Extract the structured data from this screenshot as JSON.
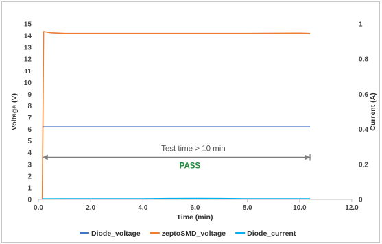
{
  "chart_data": {
    "type": "line",
    "xlabel": "Time (min)",
    "ylabel_left": "Voltage (V)",
    "ylabel_right": "Current (A)",
    "xlim": [
      0,
      12
    ],
    "ylim_left": [
      0,
      15
    ],
    "ylim_right": [
      0,
      1
    ],
    "x_ticks": [
      "0.0",
      "2.0",
      "4.0",
      "6.0",
      "8.0",
      "10.0",
      "12.0"
    ],
    "y_left_ticks": [
      "0",
      "1",
      "2",
      "3",
      "4",
      "5",
      "6",
      "7",
      "8",
      "9",
      "10",
      "11",
      "12",
      "13",
      "14",
      "15"
    ],
    "y_right_ticks": [
      "0",
      "0.2",
      "0.4",
      "0.6",
      "0.8",
      "1"
    ],
    "grid": false,
    "legend_position": "bottom",
    "series": [
      {
        "name": "Diode_voltage",
        "axis": "left",
        "color": "#4472C4",
        "x": [
          0.15,
          0.2,
          2,
          4,
          6,
          8,
          10,
          10.4
        ],
        "y": [
          6.2,
          6.2,
          6.2,
          6.2,
          6.2,
          6.2,
          6.2,
          6.2
        ]
      },
      {
        "name": "zeptoSMD_voltage",
        "axis": "left",
        "color": "#ED7D31",
        "x": [
          0.15,
          0.2,
          0.5,
          1.0,
          2,
          4,
          6,
          8,
          10,
          10.4
        ],
        "y": [
          0,
          14.35,
          14.25,
          14.2,
          14.2,
          14.2,
          14.2,
          14.2,
          14.22,
          14.2
        ]
      },
      {
        "name": "Diode_current",
        "axis": "right",
        "color": "#00B0F0",
        "x": [
          0.15,
          1,
          2,
          3,
          4,
          5,
          6,
          7,
          8,
          9,
          10,
          10.4
        ],
        "y": [
          0.003,
          0.004,
          0.004,
          0.004,
          0.004,
          0.005,
          0.006,
          0.005,
          0.004,
          0.004,
          0.004,
          0.004
        ]
      }
    ],
    "annotations": {
      "test_time_label": "Test time > 10 min",
      "pass_label": "PASS",
      "pass_color": "#1E8C3A",
      "arrow_x_range": [
        0.15,
        10.4
      ],
      "arrow_y": 3.6
    }
  }
}
